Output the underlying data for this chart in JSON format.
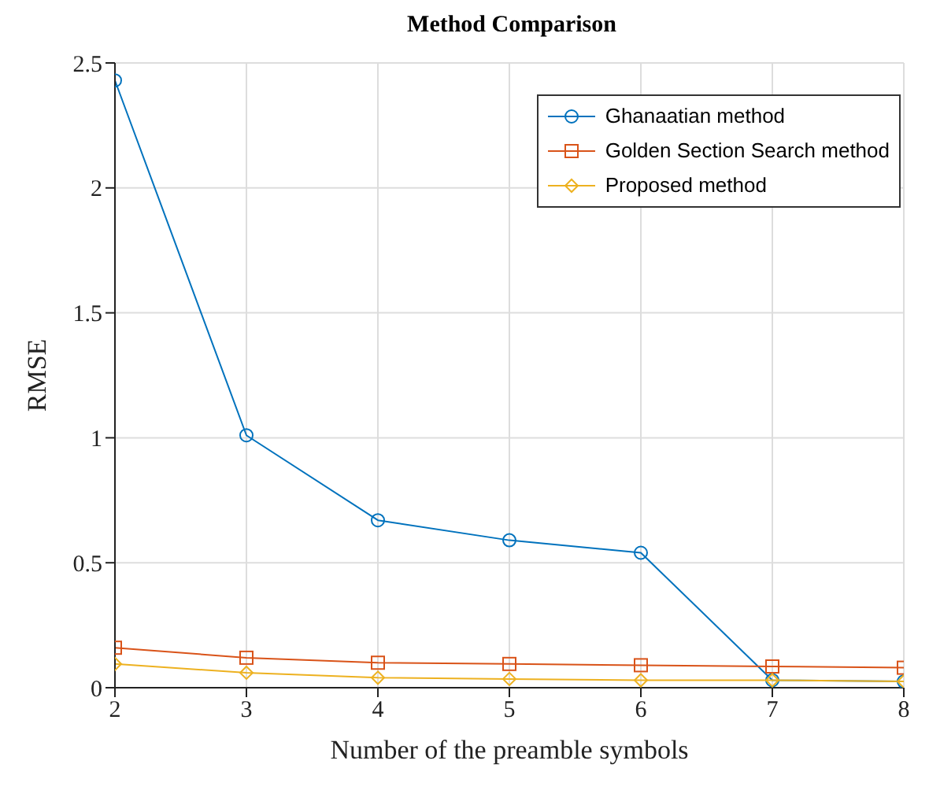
{
  "chart_data": {
    "type": "line",
    "title": "Method Comparison",
    "xlabel": "Number of the preamble symbols",
    "ylabel": "RMSE",
    "x": [
      2,
      3,
      4,
      5,
      6,
      7,
      8
    ],
    "series": [
      {
        "name": "Ghanaatian method",
        "color": "#0072bd",
        "marker": "circle",
        "values": [
          2.43,
          1.01,
          0.67,
          0.59,
          0.54,
          0.03,
          0.025
        ]
      },
      {
        "name": "Golden Section Search method",
        "color": "#d95319",
        "marker": "square",
        "values": [
          0.16,
          0.12,
          0.1,
          0.095,
          0.09,
          0.085,
          0.08
        ]
      },
      {
        "name": "Proposed method",
        "color": "#edb120",
        "marker": "diamond",
        "values": [
          0.095,
          0.06,
          0.04,
          0.035,
          0.03,
          0.03,
          0.025
        ]
      }
    ],
    "xlim": [
      2,
      8
    ],
    "xticks": [
      2,
      3,
      4,
      5,
      6,
      7,
      8
    ],
    "ylim": [
      0,
      2.5
    ],
    "yticks": [
      0,
      0.5,
      1,
      1.5,
      2,
      2.5
    ],
    "grid": true,
    "legend": "top right",
    "line_style": "solid"
  }
}
